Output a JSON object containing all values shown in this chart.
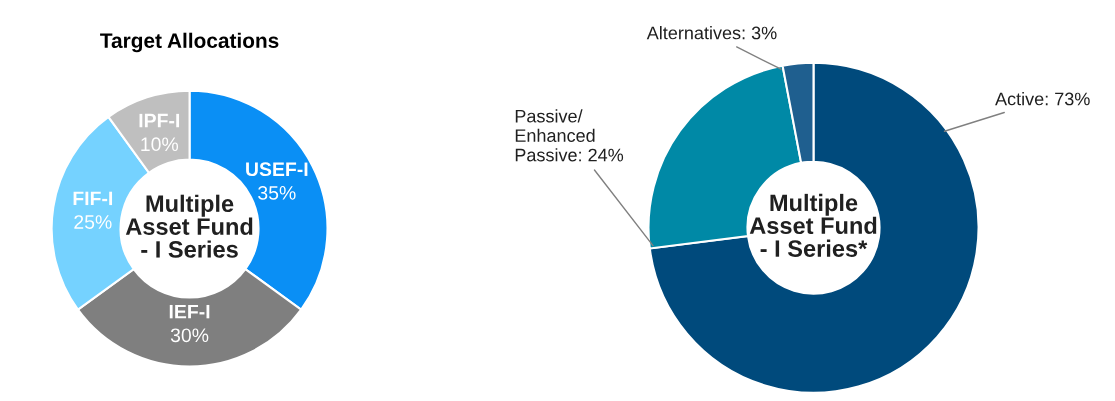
{
  "chart_data": [
    {
      "type": "donut",
      "title": "Target Allocations",
      "categories": [
        "USEF-I",
        "IEF-I",
        "FIF-I",
        "IPF-I"
      ],
      "values": [
        35,
        30,
        25,
        10
      ],
      "value_labels": [
        "35%",
        "30%",
        "25%",
        "10%"
      ],
      "colors": [
        "#0a8ff5",
        "#7f7f7f",
        "#75d2ff",
        "#bfbfbf"
      ],
      "annotations": [
        "Multiple\nAsset Fund\n- I Series"
      ]
    },
    {
      "type": "donut",
      "categories": [
        "Active",
        "Passive/\nEnhanced\nPassive",
        "Alternatives"
      ],
      "values": [
        73,
        24,
        3
      ],
      "value_labels": [
        "73%",
        "24%",
        "3%"
      ],
      "colors": [
        "#004a7c",
        "#0089a6",
        "#1f5f8f"
      ],
      "annotations": [
        "Multiple\nAsset Fund\n- I Series*"
      ]
    }
  ]
}
